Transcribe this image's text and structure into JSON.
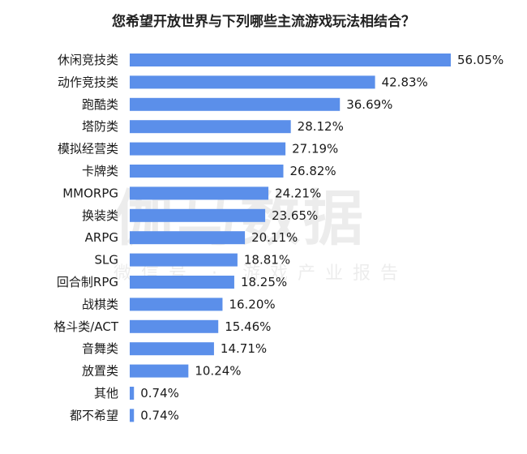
{
  "chart_data": {
    "type": "bar",
    "orientation": "horizontal",
    "title": "您希望开放世界与下列哪些主流游戏玩法相结合？",
    "categories": [
      "休闲竞技类",
      "动作竞技类",
      "跑酷类",
      "塔防类",
      "模拟经营类",
      "卡牌类",
      "MMORPG",
      "换装类",
      "ARPG",
      "SLG",
      "回合制RPG",
      "战棋类",
      "格斗类/ACT",
      "音舞类",
      "放置类",
      "其他",
      "都不希望"
    ],
    "values": [
      56.05,
      42.83,
      36.69,
      28.12,
      27.19,
      26.82,
      24.21,
      23.65,
      20.11,
      18.81,
      18.25,
      16.2,
      15.46,
      14.71,
      10.24,
      0.74,
      0.74
    ],
    "value_labels": [
      "56.05%",
      "42.83%",
      "36.69%",
      "28.12%",
      "27.19%",
      "26.82%",
      "24.21%",
      "23.65%",
      "20.11%",
      "18.81%",
      "18.25%",
      "16.20%",
      "15.46%",
      "14.71%",
      "10.24%",
      "0.74%",
      "0.74%"
    ],
    "bar_color": "#5b8fea",
    "xlim": [
      0,
      56.05
    ],
    "grid": false,
    "legend": "none"
  },
  "watermark": {
    "main": "伽马数据",
    "sub": "微信号 · 游戏产业报告"
  }
}
